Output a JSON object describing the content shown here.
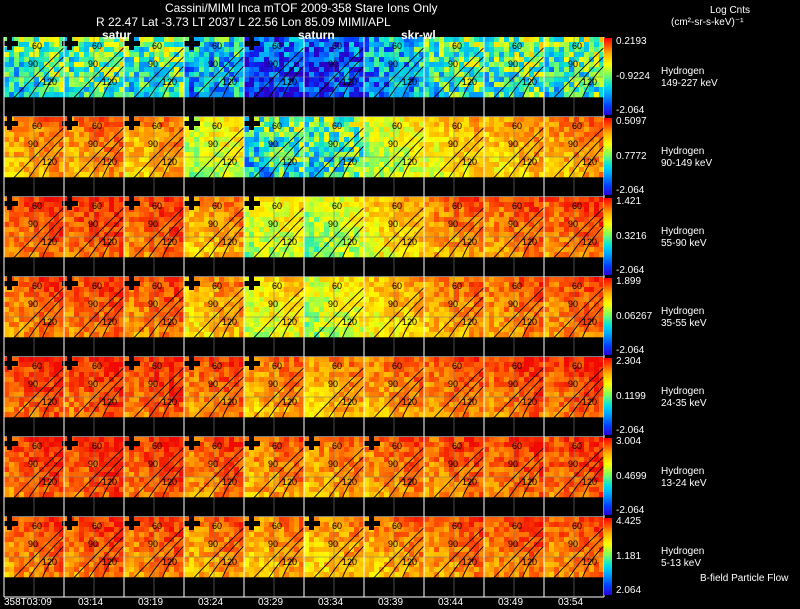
{
  "header": {
    "line1": "Cassini/MIMI Inca mTOF  2009-358   Stare    Ions Only",
    "line2": "R        22.47 Lat -3.73 LT 2037 L        22.56 Lon      85.09  MIMI/APL",
    "units_title": "Log Cnts",
    "units_sub": "(cm²-sr-s-keV)⁻¹",
    "overlay_labels": [
      "satur",
      "saturn",
      "skr-wl"
    ]
  },
  "chart_data": {
    "type": "heatmap",
    "title": "Cassini/MIMI Inca mTOF  2009-358   Stare    Ions Only",
    "times": [
      "358T03:09",
      "03:14",
      "03:19",
      "03:24",
      "03:29",
      "03:34",
      "03:39",
      "03:44",
      "03:49",
      "03:54"
    ],
    "contour_labels": [
      "60",
      "90",
      "120",
      "15"
    ],
    "rows": [
      {
        "species": "Hydrogen",
        "energy": "149-227 keV",
        "max": "0.2193",
        "mid": "-0.9224",
        "min": "-2.064",
        "levels": [
          0.45,
          0.48,
          0.45,
          0.32,
          0.12,
          0.15,
          0.3,
          0.45,
          0.48,
          0.45
        ]
      },
      {
        "species": "Hydrogen",
        "energy": "90-149 keV",
        "max": "0.5097",
        "mid": "0.7772",
        "min": "-2.064",
        "levels": [
          0.8,
          0.82,
          0.78,
          0.62,
          0.42,
          0.45,
          0.6,
          0.7,
          0.75,
          0.8
        ]
      },
      {
        "species": "Hydrogen",
        "energy": "55-90 keV",
        "max": "1.421",
        "mid": "0.3216",
        "min": "-2.064",
        "levels": [
          0.88,
          0.9,
          0.88,
          0.78,
          0.62,
          0.58,
          0.72,
          0.82,
          0.85,
          0.88
        ]
      },
      {
        "species": "Hydrogen",
        "energy": "35-55 keV",
        "max": "1.899",
        "mid": "0.06267",
        "min": "-2.064",
        "levels": [
          0.86,
          0.88,
          0.86,
          0.76,
          0.66,
          0.62,
          0.72,
          0.8,
          0.84,
          0.86
        ]
      },
      {
        "species": "Hydrogen",
        "energy": "24-35 keV",
        "max": "2.304",
        "mid": "0.1199",
        "min": "-2.064",
        "levels": [
          0.9,
          0.91,
          0.9,
          0.86,
          0.8,
          0.78,
          0.82,
          0.86,
          0.88,
          0.9
        ]
      },
      {
        "species": "Hydrogen",
        "energy": "13-24 keV",
        "max": "3.004",
        "mid": "0.4699",
        "min": "-2.064",
        "levels": [
          0.9,
          0.91,
          0.9,
          0.86,
          0.82,
          0.8,
          0.84,
          0.86,
          0.88,
          0.9
        ]
      },
      {
        "species": "Hydrogen",
        "energy": "5-13 keV",
        "max": "4.425",
        "mid": "1.181",
        "min": "2.064",
        "levels": [
          0.86,
          0.88,
          0.86,
          0.82,
          0.78,
          0.76,
          0.8,
          0.84,
          0.86,
          0.86
        ]
      }
    ]
  },
  "footer": {
    "legend": "B-field Particle Flow"
  }
}
